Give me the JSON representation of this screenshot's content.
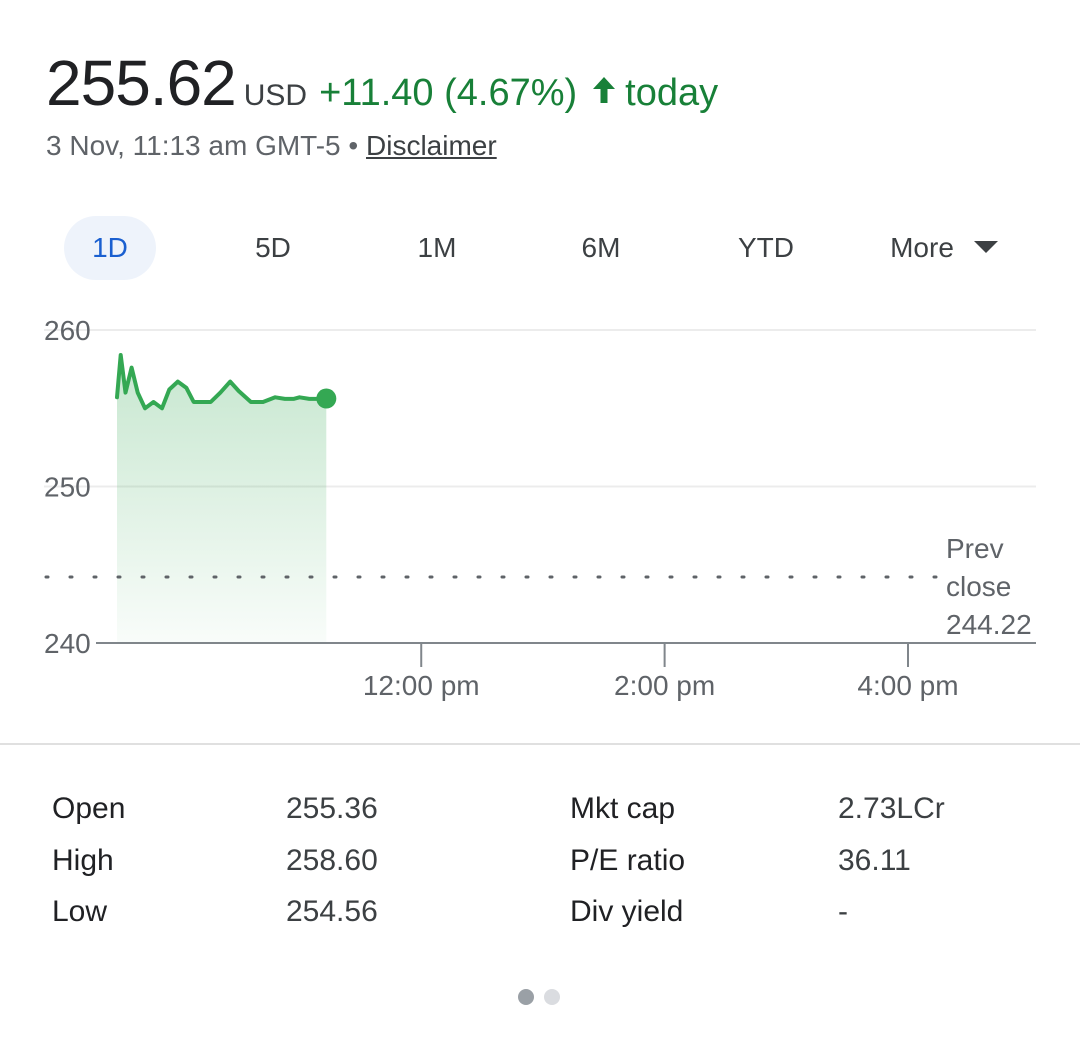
{
  "quote": {
    "price": "255.62",
    "currency": "USD",
    "change": "+11.40 (4.67%)",
    "direction_icon": "arrow-up-icon",
    "period_label": "today",
    "timestamp": "3 Nov, 11:13 am GMT-5",
    "separator": "•",
    "disclaimer_link": "Disclaimer"
  },
  "ranges": {
    "items": [
      "1D",
      "5D",
      "1M",
      "6M",
      "YTD"
    ],
    "more_label": "More",
    "selected": "1D"
  },
  "colors": {
    "up": "#188038",
    "line": "#34a853",
    "active_tab_bg": "#eef3fb",
    "active_tab_text": "#1a5fd0"
  },
  "chart_data": {
    "type": "area",
    "y_ticks": [
      "260",
      "250",
      "240"
    ],
    "ylim": [
      240,
      260
    ],
    "x_ticks": [
      "12:00 pm",
      "2:00 pm",
      "4:00 pm"
    ],
    "x_tick_values": [
      12,
      14,
      16
    ],
    "xlim": [
      9.5,
      16
    ],
    "grid": true,
    "series": [
      {
        "x": [
          9.5,
          9.53,
          9.57,
          9.62,
          9.67,
          9.73,
          9.8,
          9.87,
          9.93,
          10.0,
          10.07,
          10.13,
          10.2,
          10.27,
          10.35,
          10.43,
          10.5,
          10.6,
          10.7,
          10.8,
          10.88,
          10.95,
          11.0,
          11.08,
          11.15,
          11.22
        ],
        "y": [
          255.7,
          258.4,
          256.0,
          257.6,
          256.0,
          255.0,
          255.4,
          255.0,
          256.2,
          256.7,
          256.3,
          255.4,
          255.4,
          255.4,
          256.0,
          256.7,
          256.1,
          255.4,
          255.4,
          255.7,
          255.6,
          255.6,
          255.7,
          255.6,
          255.6,
          255.62
        ]
      }
    ],
    "reference_line": {
      "value": 244.22,
      "label_lines": [
        "Prev",
        "close",
        "244.22"
      ]
    }
  },
  "stats": {
    "left": [
      {
        "label": "Open",
        "value": "255.36"
      },
      {
        "label": "High",
        "value": "258.60"
      },
      {
        "label": "Low",
        "value": "254.56"
      }
    ],
    "right": [
      {
        "label": "Mkt cap",
        "value": "2.73LCr"
      },
      {
        "label": "P/E ratio",
        "value": "36.11"
      },
      {
        "label": "Div yield",
        "value": "-"
      }
    ]
  },
  "pager": {
    "pages": 2,
    "current": 1
  }
}
